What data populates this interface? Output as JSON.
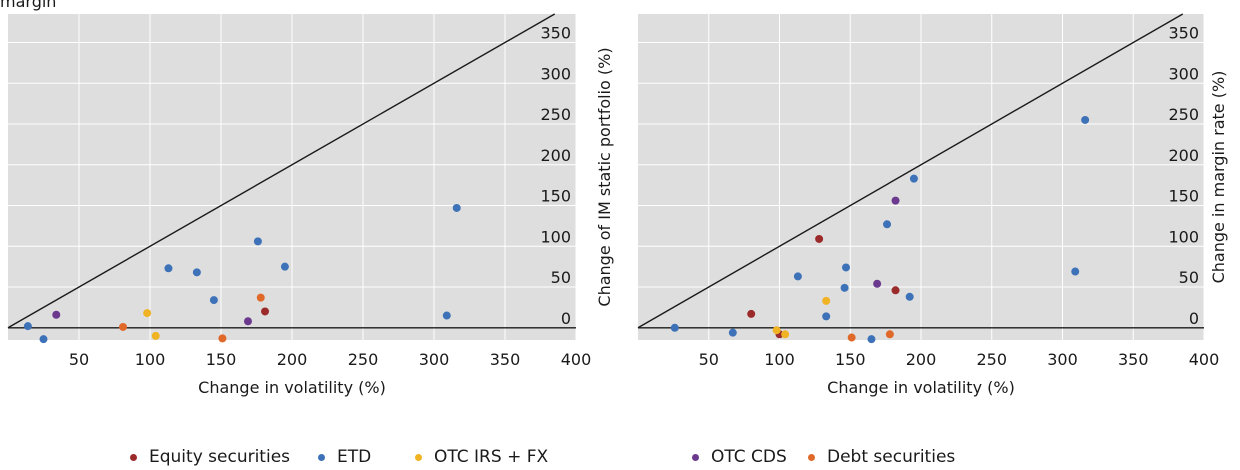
{
  "top_text": "margin",
  "colors": {
    "equity": "#9b2b2b",
    "etd": "#3d72b8",
    "otc_irs_fx": "#f0b323",
    "otc_cds": "#6b3a8e",
    "debt": "#e0692a",
    "plot_bg": "#dedede"
  },
  "legend": [
    {
      "key": "equity",
      "label": "Equity securities"
    },
    {
      "key": "etd",
      "label": "ETD"
    },
    {
      "key": "otc_irs_fx",
      "label": "OTC IRS + FX"
    },
    {
      "key": "otc_cds",
      "label": "OTC CDS"
    },
    {
      "key": "debt",
      "label": "Debt securities"
    }
  ],
  "chart_data": [
    {
      "type": "scatter",
      "xlabel": "Change in volatility (%)",
      "ylabel": "Change of IM static portfolio (%)",
      "xlim": [
        0,
        400
      ],
      "ylim": [
        -15,
        385
      ],
      "xticks": [
        50,
        100,
        150,
        200,
        250,
        300,
        350,
        400
      ],
      "yticks": [
        0,
        50,
        100,
        150,
        200,
        250,
        300,
        350
      ],
      "grid": true,
      "reference_line": "y = x",
      "series": [
        {
          "key": "equity",
          "name": "Equity securities",
          "points": [
            [
              181,
              20
            ]
          ]
        },
        {
          "key": "etd",
          "name": "ETD",
          "points": [
            [
              14,
              2
            ],
            [
              25,
              -14
            ],
            [
              113,
              73
            ],
            [
              133,
              68
            ],
            [
              145,
              34
            ],
            [
              176,
              106
            ],
            [
              195,
              75
            ],
            [
              309,
              15
            ],
            [
              316,
              147
            ]
          ]
        },
        {
          "key": "otc_irs_fx",
          "name": "OTC IRS + FX",
          "points": [
            [
              98,
              18
            ],
            [
              104,
              -10
            ]
          ]
        },
        {
          "key": "otc_cds",
          "name": "OTC CDS",
          "points": [
            [
              34,
              16
            ],
            [
              169,
              8
            ]
          ]
        },
        {
          "key": "debt",
          "name": "Debt securities",
          "points": [
            [
              81,
              1
            ],
            [
              151,
              -13
            ],
            [
              178,
              37
            ]
          ]
        }
      ]
    },
    {
      "type": "scatter",
      "xlabel": "Change in volatility (%)",
      "ylabel": "Change in margin rate (%)",
      "xlim": [
        0,
        400
      ],
      "ylim": [
        -15,
        385
      ],
      "xticks": [
        50,
        100,
        150,
        200,
        250,
        300,
        350,
        400
      ],
      "yticks": [
        0,
        50,
        100,
        150,
        200,
        250,
        300,
        350
      ],
      "grid": true,
      "reference_line": "y = x",
      "series": [
        {
          "key": "equity",
          "name": "Equity securities",
          "points": [
            [
              128,
              109
            ],
            [
              80,
              17
            ],
            [
              100,
              -8
            ],
            [
              182,
              46
            ]
          ]
        },
        {
          "key": "etd",
          "name": "ETD",
          "points": [
            [
              26,
              0
            ],
            [
              67,
              -6
            ],
            [
              113,
              63
            ],
            [
              133,
              14
            ],
            [
              147,
              74
            ],
            [
              146,
              49
            ],
            [
              176,
              127
            ],
            [
              192,
              38
            ],
            [
              195,
              183
            ],
            [
              165,
              -14
            ],
            [
              309,
              69
            ],
            [
              316,
              255
            ]
          ]
        },
        {
          "key": "otc_irs_fx",
          "name": "OTC IRS + FX",
          "points": [
            [
              98,
              -3
            ],
            [
              104,
              -8
            ],
            [
              133,
              33
            ]
          ]
        },
        {
          "key": "otc_cds",
          "name": "OTC CDS",
          "points": [
            [
              169,
              54
            ],
            [
              182,
              156
            ]
          ]
        },
        {
          "key": "debt",
          "name": "Debt securities",
          "points": [
            [
              151,
              -12
            ],
            [
              178,
              -8
            ]
          ]
        }
      ]
    }
  ]
}
